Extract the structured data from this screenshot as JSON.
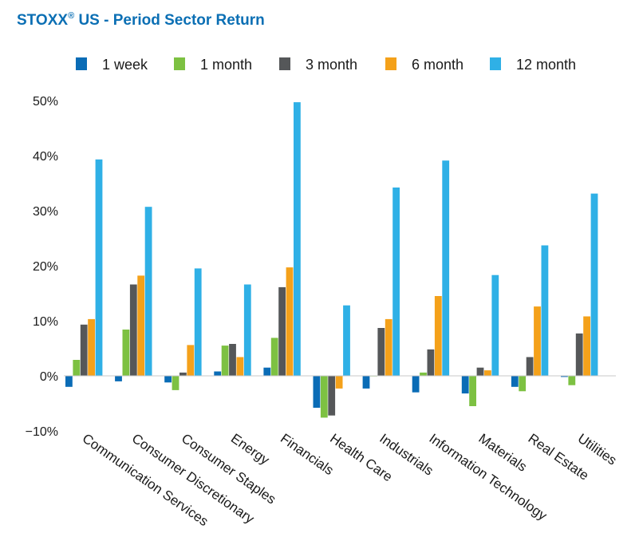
{
  "title": {
    "main": "STOXX",
    "reg": "®",
    "rest": " US - Period Sector Return"
  },
  "chart_data": {
    "type": "bar",
    "title": "STOXX® US - Period Sector Return",
    "categories": [
      "Communication Services",
      "Consumer Discretionary",
      "Consumer Staples",
      "Energy",
      "Financials",
      "Health Care",
      "Industrials",
      "Information Technology",
      "Materials",
      "Real Estate",
      "Utilities"
    ],
    "series": [
      {
        "name": "1 week",
        "color": "#0a6cb6",
        "values": [
          -2.0,
          -1.0,
          -1.2,
          0.8,
          1.5,
          -5.8,
          -2.3,
          -3.0,
          -3.2,
          -2.0,
          -0.2
        ]
      },
      {
        "name": "1 month",
        "color": "#7dc142",
        "values": [
          2.9,
          8.4,
          -2.6,
          5.5,
          6.9,
          -7.6,
          -0.1,
          0.6,
          -5.5,
          -2.8,
          -1.7
        ]
      },
      {
        "name": "3 month",
        "color": "#555759",
        "values": [
          9.3,
          16.6,
          0.6,
          5.8,
          16.1,
          -7.2,
          8.7,
          4.8,
          1.5,
          3.4,
          7.7
        ]
      },
      {
        "name": "6 month",
        "color": "#f4a11a",
        "values": [
          10.3,
          18.2,
          5.6,
          3.4,
          19.7,
          -2.3,
          10.3,
          14.5,
          1.0,
          12.6,
          10.8
        ]
      },
      {
        "name": "12 month",
        "color": "#2fb0e6",
        "values": [
          39.3,
          30.7,
          19.5,
          16.6,
          49.7,
          12.8,
          34.2,
          39.1,
          18.3,
          23.7,
          33.1
        ]
      }
    ],
    "ylim": [
      -10,
      50
    ],
    "yticks": [
      50,
      40,
      30,
      20,
      10,
      0,
      -10
    ],
    "ytick_labels": [
      "50%",
      "40%",
      "30%",
      "20%",
      "10%",
      "0%",
      "−10%"
    ],
    "grid": false,
    "legend_position": "top"
  }
}
